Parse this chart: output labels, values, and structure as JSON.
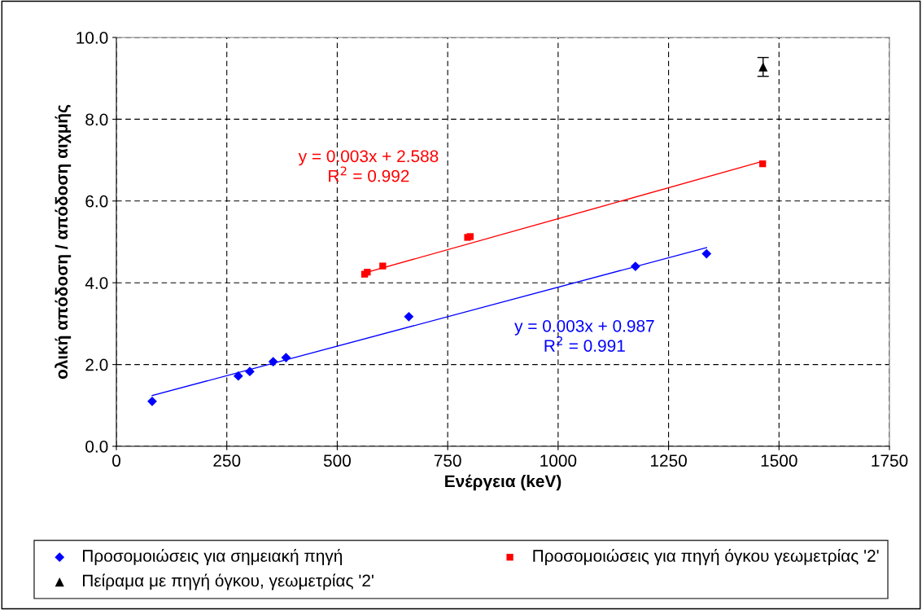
{
  "chart_data": {
    "type": "scatter",
    "xlabel": "Ενέργεια (keV)",
    "ylabel": "ολική απόδοση / απόδοση αιχμής",
    "xlim": [
      0,
      1750
    ],
    "xticks": [
      0,
      250,
      500,
      750,
      1000,
      1250,
      1500,
      1750
    ],
    "ylim": [
      0,
      10
    ],
    "yticks": [
      {
        "value": 0,
        "label": "0.0"
      },
      {
        "value": 2,
        "label": "2.0"
      },
      {
        "value": 4,
        "label": "4.0"
      },
      {
        "value": 6,
        "label": "6.0"
      },
      {
        "value": 8,
        "label": "8.0"
      },
      {
        "value": 10,
        "label": "10.0"
      }
    ],
    "grid": true,
    "legend": "bottom",
    "series": [
      {
        "name": "Προσομοιώσεις για σημειακή πηγή",
        "color": "#0000ff",
        "marker": "diamond",
        "x": [
          81,
          276,
          302,
          355,
          384,
          662,
          1175,
          1336
        ],
        "values": [
          1.1,
          1.72,
          1.83,
          2.07,
          2.17,
          3.17,
          4.4,
          4.71
        ]
      },
      {
        "name": "Προσομοιώσεις για πηγή όγκου γεωμετρίας '2'",
        "color": "#ff0000",
        "marker": "square",
        "x": [
          562,
          568,
          603,
          795,
          801,
          1463
        ],
        "values": [
          4.21,
          4.26,
          4.41,
          5.11,
          5.13,
          6.91
        ]
      },
      {
        "name": "Πείραμα με πηγή όγκου, γεωμετρίας '2'",
        "color": "#000000",
        "marker": "triangle",
        "x": [
          1464
        ],
        "values": [
          9.28
        ],
        "errors": [
          0.23
        ]
      },
      {
        "type": "line",
        "color": "#ff0000",
        "x": [
          562,
          1463
        ],
        "values": [
          4.24,
          6.97
        ]
      },
      {
        "type": "line",
        "color": "#0000ff",
        "x": [
          81,
          1336
        ],
        "values": [
          1.24,
          4.86
        ]
      }
    ],
    "annotations": [
      "y = 0.003x + 2.588\nR$^{2}$ = 0.992",
      "y = 0.003x + 0.987\nR$^{2}$ = 0.991"
    ]
  }
}
